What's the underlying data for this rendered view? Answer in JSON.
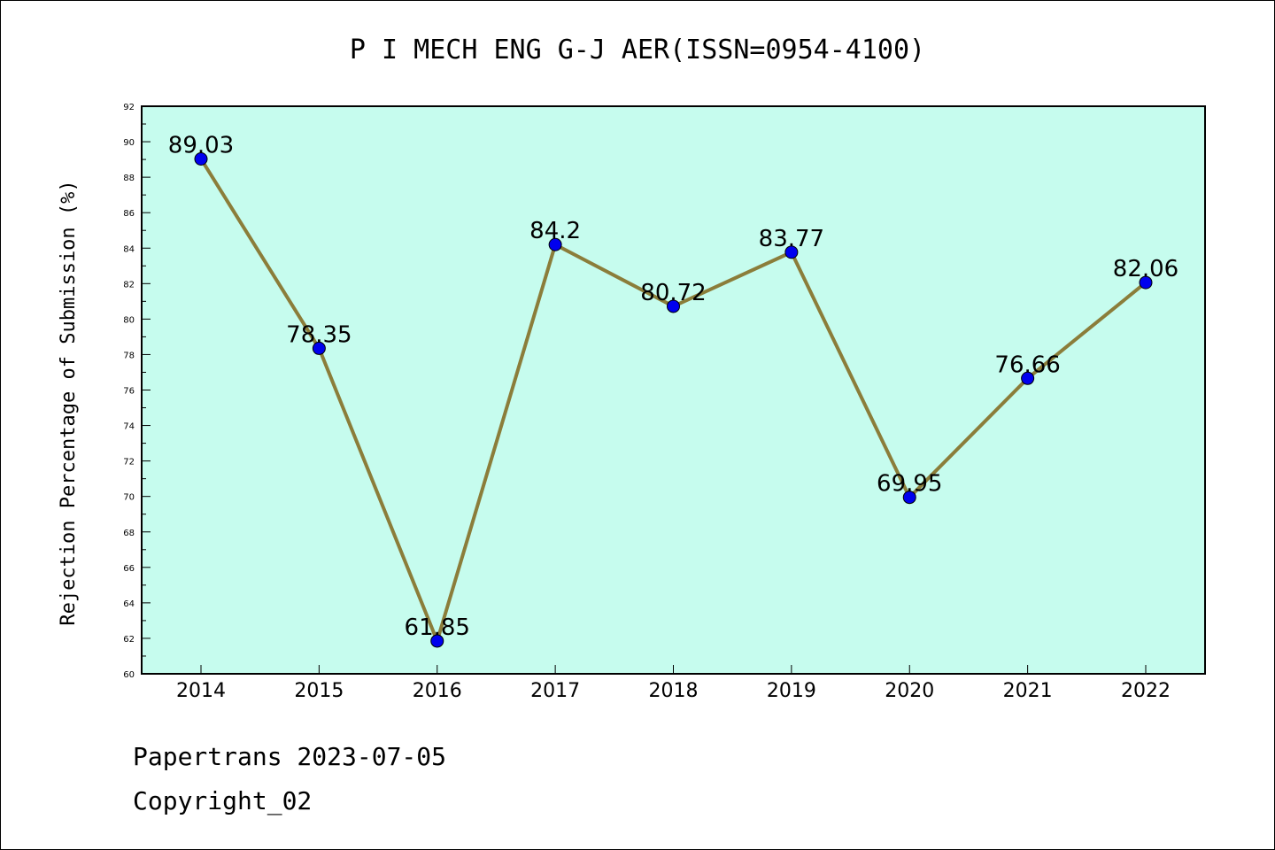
{
  "chart_data": {
    "type": "line",
    "title": "P I MECH ENG G-J AER(ISSN=0954-4100)",
    "ylabel": "Rejection Percentage of Submission (%)",
    "xlabel": "",
    "categories": [
      "2014",
      "2015",
      "2016",
      "2017",
      "2018",
      "2019",
      "2020",
      "2021",
      "2022"
    ],
    "values": [
      89.03,
      78.35,
      61.85,
      84.2,
      80.72,
      83.77,
      69.95,
      76.66,
      82.06
    ],
    "data_labels": [
      "89.03",
      "78.35",
      "61.85",
      "84.2",
      "80.72",
      "83.77",
      "69.95",
      "76.66",
      "82.06"
    ],
    "ylim": [
      60,
      92
    ],
    "yticks": [
      "60",
      "62",
      "64",
      "66",
      "68",
      "70",
      "72",
      "74",
      "76",
      "78",
      "80",
      "82",
      "84",
      "86",
      "88",
      "90",
      "92"
    ],
    "grid": false,
    "colors": {
      "plot_background": "#c6fcee",
      "line": "#8b7d3a",
      "marker": "#0000ee"
    }
  },
  "footer": {
    "line1": "Papertrans 2023-07-05",
    "line2": "Copyright_02"
  }
}
